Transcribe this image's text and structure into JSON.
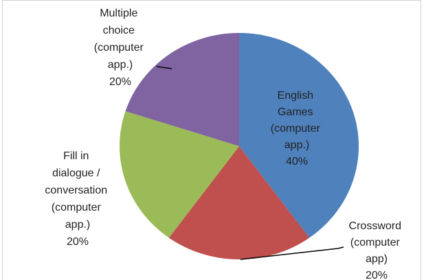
{
  "chart_data": {
    "type": "pie",
    "categories": [
      "English Games (computer app.)",
      "Crossword (computer app)",
      "Fill in dialogue / conversation (computer app.)",
      "Multiple choice (computer app.)"
    ],
    "values": [
      40,
      20,
      20,
      20
    ],
    "value_labels": [
      "40%",
      "20%",
      "20%",
      "20%"
    ],
    "colors": [
      "#4f81bd",
      "#c0504d",
      "#9bbb59",
      "#8064a2"
    ]
  }
}
